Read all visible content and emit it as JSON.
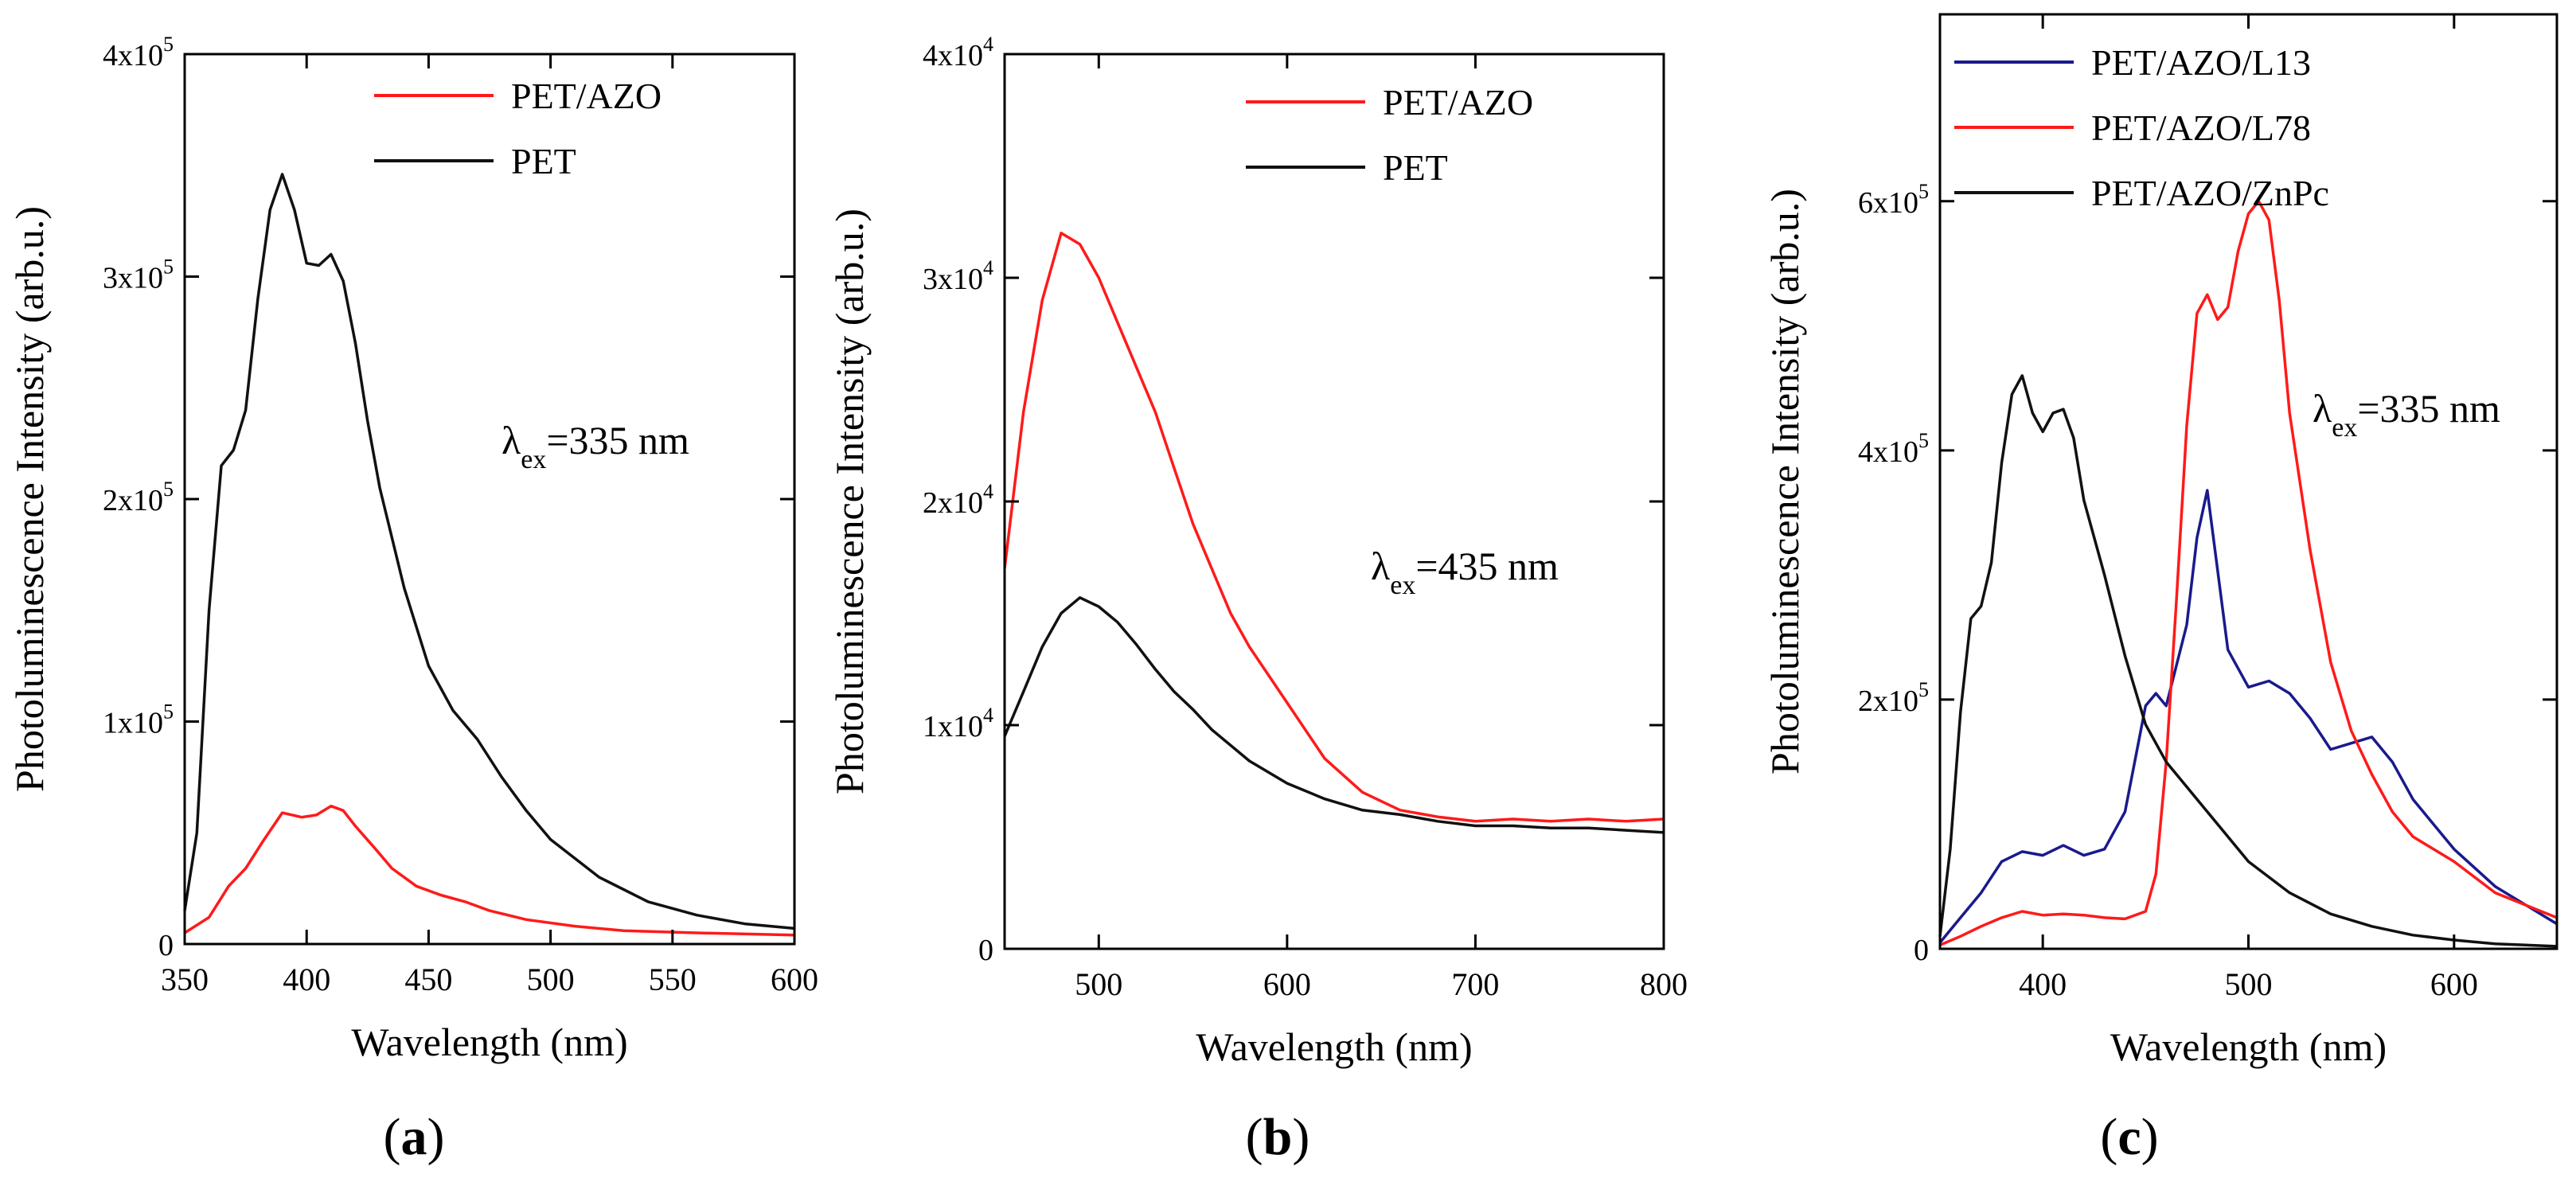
{
  "chart_data": [
    {
      "type": "line",
      "panel_label": "(a)",
      "panel_letter": "a",
      "xlabel": "Wavelength (nm)",
      "ylabel": "Photoluminescence Intensity (arb.u.)",
      "xlim": [
        350,
        600
      ],
      "ylim": [
        0,
        400000
      ],
      "x_ticks": [
        350,
        400,
        450,
        500,
        550,
        600
      ],
      "y_ticks": [
        {
          "value": 0,
          "mantissa": "0",
          "exponent": ""
        },
        {
          "value": 100000,
          "mantissa": "1x10",
          "exponent": "5"
        },
        {
          "value": 200000,
          "mantissa": "2x10",
          "exponent": "5"
        },
        {
          "value": 300000,
          "mantissa": "3x10",
          "exponent": "5"
        },
        {
          "value": 400000,
          "mantissa": "4x10",
          "exponent": "5"
        }
      ],
      "legend_position": "top-right",
      "annotation": {
        "symbol": "λ",
        "subscript": "ex",
        "text": "=335 nm"
      },
      "series": [
        {
          "name": "PET/AZO",
          "color": "#ff1a1a",
          "x": [
            350,
            360,
            368,
            375,
            382,
            390,
            398,
            404,
            410,
            415,
            420,
            428,
            435,
            445,
            455,
            465,
            475,
            490,
            510,
            530,
            560,
            600
          ],
          "y": [
            5000,
            12000,
            26000,
            34000,
            46000,
            59000,
            57000,
            58000,
            62000,
            60000,
            53000,
            43000,
            34000,
            26000,
            22000,
            19000,
            15000,
            11000,
            8000,
            6000,
            5000,
            4000
          ]
        },
        {
          "name": "PET",
          "color": "#111111",
          "x": [
            350,
            355,
            360,
            365,
            370,
            375,
            380,
            385,
            390,
            395,
            400,
            405,
            410,
            415,
            420,
            425,
            430,
            440,
            450,
            460,
            470,
            480,
            490,
            500,
            520,
            540,
            560,
            580,
            600
          ],
          "y": [
            15000,
            50000,
            150000,
            215000,
            222000,
            240000,
            290000,
            330000,
            346000,
            330000,
            306000,
            305000,
            310000,
            298000,
            270000,
            235000,
            205000,
            160000,
            125000,
            105000,
            92000,
            75000,
            60000,
            47000,
            30000,
            19000,
            13000,
            9000,
            7000
          ]
        }
      ]
    },
    {
      "type": "line",
      "panel_label": "(b)",
      "panel_letter": "b",
      "xlabel": "Wavelength (nm)",
      "ylabel": "Photoluminescence Intensity (arb.u.)",
      "xlim": [
        450,
        800
      ],
      "ylim": [
        0,
        40000
      ],
      "x_ticks": [
        500,
        600,
        700,
        800
      ],
      "y_ticks": [
        {
          "value": 0,
          "mantissa": "0",
          "exponent": ""
        },
        {
          "value": 10000,
          "mantissa": "1x10",
          "exponent": "4"
        },
        {
          "value": 20000,
          "mantissa": "2x10",
          "exponent": "4"
        },
        {
          "value": 30000,
          "mantissa": "3x10",
          "exponent": "4"
        },
        {
          "value": 40000,
          "mantissa": "4x10",
          "exponent": "4"
        }
      ],
      "legend_position": "top-right",
      "annotation": {
        "symbol": "λ",
        "subscript": "ex",
        "text": "=435 nm"
      },
      "series": [
        {
          "name": "PET/AZO",
          "color": "#ff1a1a",
          "x": [
            450,
            460,
            470,
            480,
            490,
            500,
            510,
            520,
            530,
            540,
            550,
            560,
            570,
            580,
            600,
            620,
            640,
            660,
            680,
            700,
            720,
            740,
            760,
            780,
            800
          ],
          "y": [
            17000,
            24000,
            29000,
            32000,
            31500,
            30000,
            28000,
            26000,
            24000,
            21500,
            19000,
            17000,
            15000,
            13500,
            11000,
            8500,
            7000,
            6200,
            5900,
            5700,
            5800,
            5700,
            5800,
            5700,
            5800
          ]
        },
        {
          "name": "PET",
          "color": "#111111",
          "x": [
            450,
            460,
            470,
            480,
            490,
            500,
            510,
            520,
            530,
            540,
            550,
            560,
            580,
            600,
            620,
            640,
            660,
            680,
            700,
            720,
            740,
            760,
            780,
            800
          ],
          "y": [
            9500,
            11500,
            13500,
            15000,
            15700,
            15300,
            14600,
            13600,
            12500,
            11500,
            10700,
            9800,
            8400,
            7400,
            6700,
            6200,
            6000,
            5700,
            5500,
            5500,
            5400,
            5400,
            5300,
            5200
          ]
        }
      ]
    },
    {
      "type": "line",
      "panel_label": "(c)",
      "panel_letter": "c",
      "xlabel": "Wavelength (nm)",
      "ylabel": "Photoluminescence Intensity (arb.u.)",
      "xlim": [
        350,
        650
      ],
      "ylim": [
        0,
        750000
      ],
      "x_ticks": [
        400,
        500,
        600
      ],
      "y_ticks": [
        {
          "value": 0,
          "mantissa": "0",
          "exponent": ""
        },
        {
          "value": 200000,
          "mantissa": "2x10",
          "exponent": "5"
        },
        {
          "value": 400000,
          "mantissa": "4x10",
          "exponent": "5"
        },
        {
          "value": 600000,
          "mantissa": "6x10",
          "exponent": "5"
        }
      ],
      "legend_position": "top-left",
      "annotation": {
        "symbol": "λ",
        "subscript": "ex",
        "text": "=335 nm"
      },
      "series": [
        {
          "name": "PET/AZO/L13",
          "color": "#1a1a8c",
          "x": [
            350,
            360,
            370,
            380,
            390,
            400,
            410,
            420,
            430,
            440,
            450,
            455,
            460,
            470,
            475,
            480,
            490,
            500,
            510,
            520,
            530,
            540,
            550,
            560,
            570,
            580,
            600,
            620,
            650
          ],
          "y": [
            5000,
            25000,
            45000,
            70000,
            78000,
            75000,
            83000,
            75000,
            80000,
            110000,
            195000,
            205000,
            195000,
            260000,
            330000,
            368000,
            240000,
            210000,
            215000,
            205000,
            185000,
            160000,
            165000,
            170000,
            150000,
            120000,
            80000,
            50000,
            20000
          ]
        },
        {
          "name": "PET/AZO/L78",
          "color": "#ff1a1a",
          "x": [
            350,
            360,
            370,
            380,
            390,
            400,
            410,
            420,
            430,
            440,
            450,
            455,
            460,
            465,
            470,
            475,
            480,
            485,
            490,
            495,
            500,
            505,
            510,
            515,
            520,
            530,
            540,
            550,
            560,
            570,
            580,
            600,
            620,
            650
          ],
          "y": [
            3000,
            10000,
            18000,
            25000,
            30000,
            27000,
            28000,
            27000,
            25000,
            24000,
            30000,
            60000,
            150000,
            280000,
            420000,
            510000,
            525000,
            505000,
            515000,
            560000,
            590000,
            600000,
            585000,
            520000,
            430000,
            320000,
            230000,
            175000,
            140000,
            110000,
            90000,
            70000,
            45000,
            25000
          ]
        },
        {
          "name": "PET/AZO/ZnPc",
          "color": "#111111",
          "x": [
            350,
            355,
            360,
            365,
            370,
            375,
            380,
            385,
            390,
            395,
            400,
            405,
            410,
            415,
            420,
            430,
            440,
            450,
            460,
            470,
            480,
            490,
            500,
            520,
            540,
            560,
            580,
            600,
            620,
            650
          ],
          "y": [
            10000,
            80000,
            190000,
            265000,
            275000,
            310000,
            390000,
            445000,
            460000,
            430000,
            415000,
            430000,
            433000,
            410000,
            360000,
            300000,
            235000,
            180000,
            150000,
            130000,
            110000,
            90000,
            70000,
            45000,
            28000,
            18000,
            11000,
            7000,
            4000,
            2000
          ]
        }
      ]
    }
  ]
}
